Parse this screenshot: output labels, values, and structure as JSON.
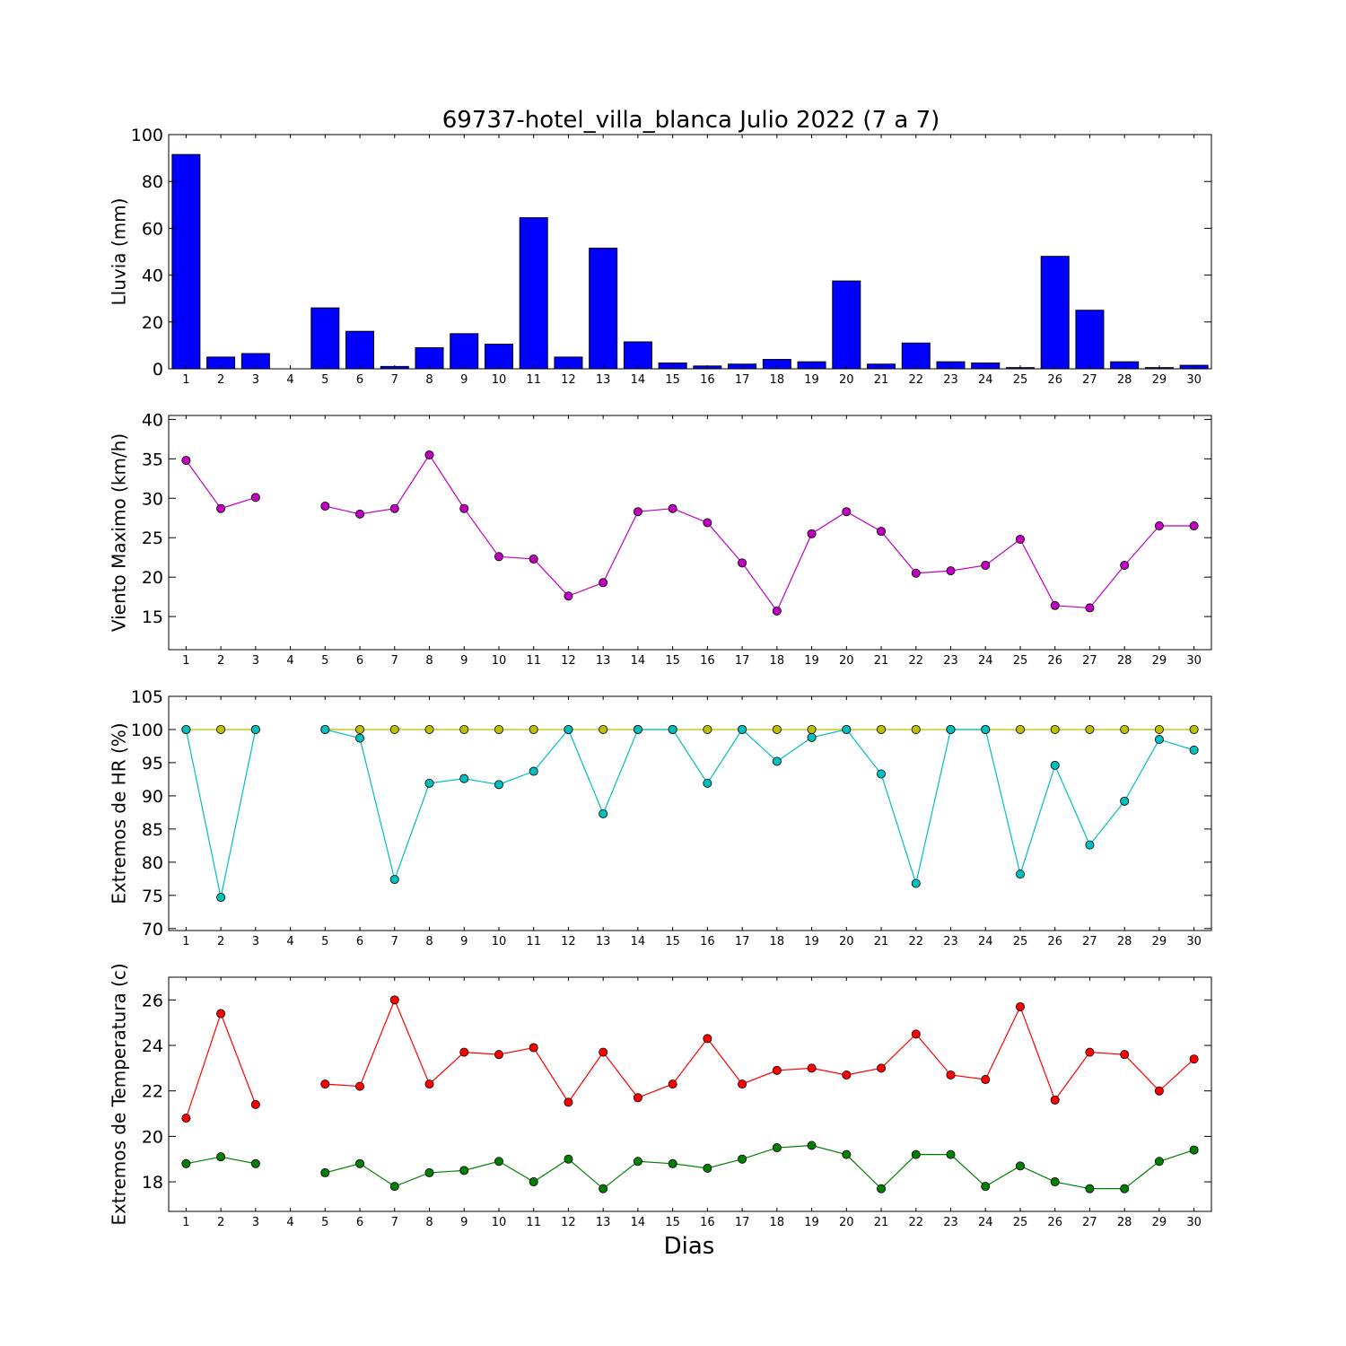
{
  "title": "69737-hotel_villa_blanca Julio 2022  (7 a 7)",
  "xlabel": "Dias",
  "chart_data": [
    {
      "type": "bar",
      "ylabel": "Lluvia (mm)",
      "ylim": [
        0,
        100
      ],
      "yticks": [
        0,
        20,
        40,
        60,
        80,
        100
      ],
      "color": "#0000ff",
      "categories": [
        "1",
        "2",
        "3",
        "4",
        "5",
        "6",
        "7",
        "8",
        "9",
        "10",
        "11",
        "12",
        "13",
        "14",
        "15",
        "16",
        "17",
        "18",
        "19",
        "20",
        "21",
        "22",
        "23",
        "24",
        "25",
        "26",
        "27",
        "28",
        "29",
        "30"
      ],
      "values": [
        91.5,
        5,
        6.5,
        null,
        26,
        16,
        1,
        9,
        15,
        10.5,
        64.5,
        5,
        51.5,
        11.5,
        2.5,
        1.2,
        2,
        4,
        3,
        37.5,
        2,
        11,
        3,
        2.5,
        0.5,
        48,
        25,
        3,
        0.5,
        1.5
      ]
    },
    {
      "type": "line",
      "ylabel": "Viento Maximo (km/h)",
      "ylim": [
        10.8,
        40.5
      ],
      "yticks": [
        15,
        20,
        25,
        30,
        35,
        40
      ],
      "x": [
        1,
        2,
        3,
        4,
        5,
        6,
        7,
        8,
        9,
        10,
        11,
        12,
        13,
        14,
        15,
        16,
        17,
        18,
        19,
        20,
        21,
        22,
        23,
        24,
        25,
        26,
        27,
        28,
        29,
        30
      ],
      "series": [
        {
          "color": "#bf00bf",
          "values": [
            34.8,
            28.7,
            30.1,
            null,
            29.0,
            28.0,
            28.7,
            35.5,
            28.7,
            22.6,
            22.3,
            17.6,
            19.3,
            28.3,
            28.7,
            26.9,
            21.8,
            15.7,
            25.5,
            28.3,
            25.8,
            20.5,
            20.8,
            21.5,
            24.8,
            16.4,
            16.1,
            21.5,
            26.5,
            26.5
          ]
        }
      ]
    },
    {
      "type": "line",
      "ylabel": "Extremos de HR (%)",
      "ylim": [
        69.7,
        105
      ],
      "yticks": [
        70,
        75,
        80,
        85,
        90,
        95,
        100,
        105
      ],
      "x": [
        1,
        2,
        3,
        4,
        5,
        6,
        7,
        8,
        9,
        10,
        11,
        12,
        13,
        14,
        15,
        16,
        17,
        18,
        19,
        20,
        21,
        22,
        23,
        24,
        25,
        26,
        27,
        28,
        29,
        30
      ],
      "series": [
        {
          "color": "#bfbf00",
          "values": [
            100,
            100,
            100,
            null,
            100,
            100,
            100,
            100,
            100,
            100,
            100,
            100,
            100,
            100,
            100,
            100,
            100,
            100,
            100,
            100,
            100,
            100,
            100,
            100,
            100,
            100,
            100,
            100,
            100,
            100
          ]
        },
        {
          "color": "#00bfbf",
          "values": [
            100,
            74.7,
            100,
            null,
            100,
            98.7,
            77.4,
            91.9,
            92.6,
            91.7,
            93.7,
            100,
            87.3,
            100,
            100,
            91.9,
            100,
            95.2,
            98.8,
            100,
            93.3,
            76.8,
            100,
            100,
            78.2,
            94.6,
            82.6,
            89.2,
            98.5,
            96.9
          ]
        }
      ]
    },
    {
      "type": "line",
      "ylabel": "Extremos de Temperatura (c)",
      "ylim": [
        16.7,
        27.0
      ],
      "yticks": [
        18,
        20,
        22,
        24,
        26
      ],
      "x": [
        1,
        2,
        3,
        4,
        5,
        6,
        7,
        8,
        9,
        10,
        11,
        12,
        13,
        14,
        15,
        16,
        17,
        18,
        19,
        20,
        21,
        22,
        23,
        24,
        25,
        26,
        27,
        28,
        29,
        30
      ],
      "series": [
        {
          "color": "#ff0000",
          "values": [
            20.8,
            25.4,
            21.4,
            null,
            22.3,
            22.2,
            26.0,
            22.3,
            23.7,
            23.6,
            23.9,
            21.5,
            23.7,
            21.7,
            22.3,
            24.3,
            22.3,
            22.9,
            23.0,
            22.7,
            23.0,
            24.5,
            22.7,
            22.5,
            25.7,
            21.6,
            23.7,
            23.6,
            22.0,
            23.4
          ]
        },
        {
          "color": "#008000",
          "values": [
            18.8,
            19.1,
            18.8,
            null,
            18.4,
            18.8,
            17.8,
            18.4,
            18.5,
            18.9,
            18.0,
            19.0,
            17.7,
            18.9,
            18.8,
            18.6,
            19.0,
            19.5,
            19.6,
            19.2,
            17.7,
            19.2,
            19.2,
            17.8,
            18.7,
            18.0,
            17.7,
            17.7,
            18.9,
            19.4
          ]
        }
      ]
    }
  ]
}
